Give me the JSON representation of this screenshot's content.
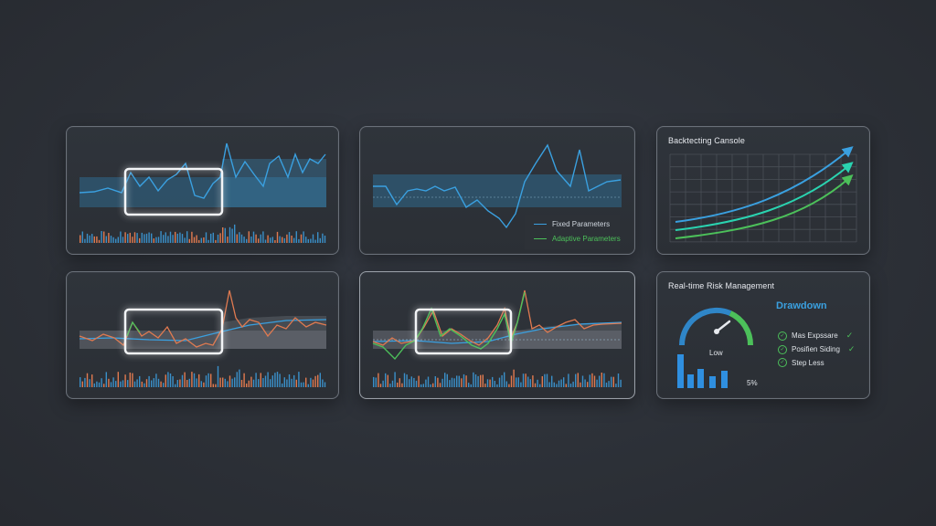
{
  "colors": {
    "background": "#2c3037",
    "panel": "#2e3238",
    "blue": "#3aa0e0",
    "orange": "#e07a50",
    "green": "#4cc05a",
    "band_blue": "#2f6a8e",
    "band_gray": "#6b7078"
  },
  "panels": {
    "fixed_vs_adaptive": {
      "legend": [
        {
          "label": "Fixed Parameters",
          "color": "#3aa0e0"
        },
        {
          "label": "Adaptive Parameters",
          "color": "#4cc05a"
        }
      ]
    },
    "backtesting": {
      "title": "Backtecting Cansole"
    },
    "risk": {
      "title": "Real-time Risk Management",
      "drawdown_label": "Drawdown",
      "gauge_label": "Low",
      "percent_label": "5%",
      "gauge_icon": "speedometer-icon",
      "checklist": [
        {
          "label": "Mas Expssare",
          "checked": true
        },
        {
          "label": "Posifien Siding",
          "checked": true
        },
        {
          "label": "Step Less",
          "checked": false
        }
      ]
    }
  }
}
